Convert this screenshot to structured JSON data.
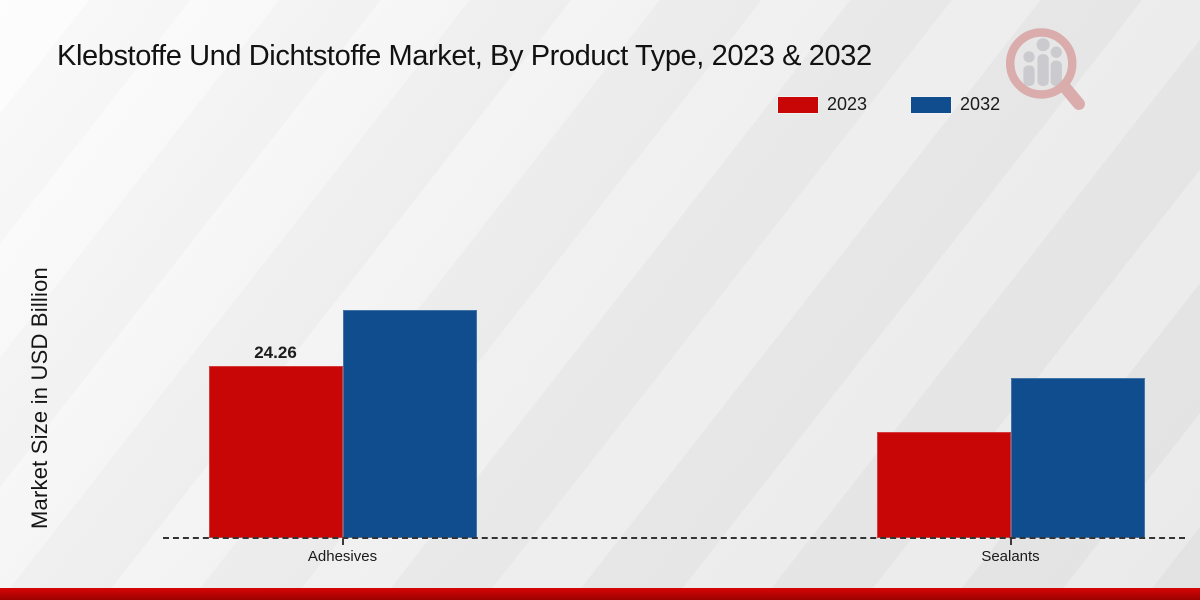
{
  "chart_data": {
    "type": "bar",
    "title": "Klebstoffe Und Dichtstoffe Market, By Product Type, 2023 & 2032",
    "xlabel": "",
    "ylabel": "Market Size in USD Billion",
    "categories": [
      "Adhesives",
      "Sealants"
    ],
    "series": [
      {
        "name": "2023",
        "color": "#c90606",
        "values": [
          24.26,
          15.0
        ]
      },
      {
        "name": "2032",
        "color": "#0f4d8f",
        "values": [
          32.2,
          22.7
        ]
      }
    ],
    "data_labels": [
      {
        "category": "Adhesives",
        "series": "2023",
        "text": "24.26"
      }
    ],
    "ylim": [
      0,
      34
    ],
    "grid": false,
    "axis_line_style": "dashed-baseline-only",
    "legend_position": "top-right"
  },
  "watermark": {
    "icon": "magnifier-bar-chart-logo"
  },
  "footer": {
    "accent_color": "#c40000"
  },
  "colors": {
    "series_2023": "#c90606",
    "series_2032": "#0f4d8f",
    "baseline": "#333333",
    "background": "#ececec"
  }
}
